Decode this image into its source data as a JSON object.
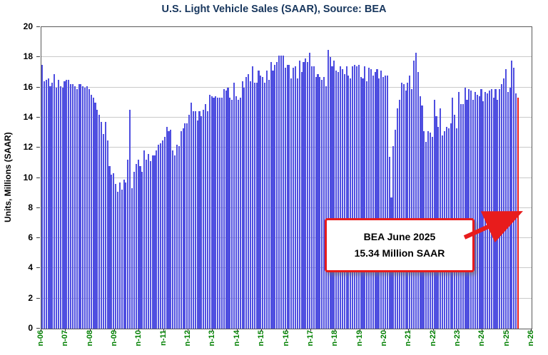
{
  "chart_data": {
    "type": "bar",
    "title": "U.S. Light Vehicle Sales (SAAR), Source: BEA",
    "ylabel": "Units, Millions (SAAR)",
    "ylim": [
      0,
      20
    ],
    "y_ticks": [
      0,
      2,
      4,
      6,
      8,
      10,
      12,
      14,
      16,
      18,
      20
    ],
    "x_tick_labels": [
      "n-06",
      "n-07",
      "n-08",
      "n-09",
      "n-10",
      "n-11",
      "n-12",
      "n-13",
      "n-14",
      "n-15",
      "n-16",
      "n-17",
      "n-18",
      "n-19",
      "n-20",
      "n-21",
      "n-22",
      "n-23",
      "n-24",
      "n-25",
      "n-26"
    ],
    "months_per_tick": 12,
    "x_total_months": 240,
    "grid": true,
    "bar_color": "#4f4fe0",
    "series": [
      {
        "name": "Light Vehicle Sales SAAR (millions)",
        "values": [
          17.5,
          16.4,
          16.5,
          16.6,
          16.1,
          16.3,
          16.9,
          16.0,
          16.5,
          16.1,
          16.0,
          16.4,
          16.5,
          16.5,
          16.2,
          16.2,
          16.1,
          15.9,
          16.2,
          16.2,
          16.1,
          16.0,
          16.1,
          15.9,
          15.5,
          15.3,
          15.0,
          14.5,
          14.2,
          13.7,
          12.9,
          13.7,
          12.5,
          10.8,
          10.2,
          10.3,
          9.6,
          9.1,
          9.7,
          9.2,
          9.9,
          9.7,
          11.2,
          14.5,
          9.3,
          10.4,
          10.9,
          11.2,
          10.8,
          10.4,
          11.8,
          11.2,
          11.6,
          11.1,
          11.5,
          11.5,
          11.8,
          12.2,
          12.3,
          12.5,
          12.7,
          13.4,
          13.1,
          13.2,
          11.8,
          11.5,
          12.2,
          12.1,
          13.1,
          13.3,
          13.6,
          13.6,
          14.2,
          15.0,
          14.4,
          14.4,
          13.8,
          14.4,
          14.1,
          14.5,
          14.9,
          14.4,
          15.5,
          15.4,
          15.3,
          15.4,
          15.3,
          15.3,
          15.3,
          15.9,
          15.8,
          16.0,
          15.3,
          15.2,
          16.3,
          15.4,
          15.2,
          15.3,
          16.4,
          16.0,
          16.7,
          16.9,
          16.4,
          17.4,
          16.3,
          16.3,
          17.1,
          16.8,
          16.7,
          16.3,
          17.1,
          16.5,
          17.7,
          17.1,
          17.5,
          17.7,
          18.1,
          18.1,
          18.1,
          17.3,
          17.5,
          17.5,
          16.6,
          17.3,
          17.4,
          16.6,
          17.8,
          17.0,
          17.7,
          17.9,
          17.7,
          18.3,
          17.4,
          17.4,
          16.7,
          16.9,
          16.7,
          16.5,
          16.7,
          16.1,
          18.5,
          18.0,
          17.4,
          17.8,
          17.1,
          17.0,
          17.4,
          17.2,
          16.9,
          17.4,
          16.8,
          16.6,
          17.4,
          17.5,
          17.4,
          17.5,
          16.7,
          16.6,
          17.4,
          16.4,
          17.3,
          17.2,
          16.8,
          17.0,
          17.2,
          16.6,
          17.1,
          16.7,
          16.8,
          16.8,
          11.4,
          8.7,
          12.1,
          13.2,
          14.6,
          15.2,
          16.3,
          16.2,
          15.8,
          16.3,
          16.8,
          15.9,
          17.8,
          18.3,
          17.0,
          15.4,
          14.8,
          13.1,
          12.4,
          13.1,
          13.0,
          12.7,
          15.2,
          14.1,
          13.4,
          14.6,
          12.8,
          13.1,
          13.4,
          13.3,
          13.6,
          15.3,
          14.2,
          13.3,
          15.7,
          14.9,
          14.9,
          16.0,
          15.2,
          15.9,
          15.8,
          15.2,
          15.7,
          15.5,
          15.4,
          15.9,
          15.1,
          15.7,
          15.6,
          15.8,
          15.9,
          15.3,
          15.9,
          15.2,
          15.9,
          16.2,
          16.6,
          17.2,
          15.7,
          16.0,
          17.8,
          17.3,
          15.6,
          15.34
        ]
      }
    ],
    "highlight": {
      "index": 233,
      "value": 15.34,
      "color": "#e81c1c"
    },
    "annotation": {
      "line1": "BEA June 2025",
      "line2": "15.34 Million SAAR"
    },
    "colors": {
      "title": "#17365d",
      "x_labels": "#008000",
      "gridline": "#c9c9c9",
      "accent_red": "#e81c1c",
      "bar_blue": "#4f4fe0"
    }
  }
}
